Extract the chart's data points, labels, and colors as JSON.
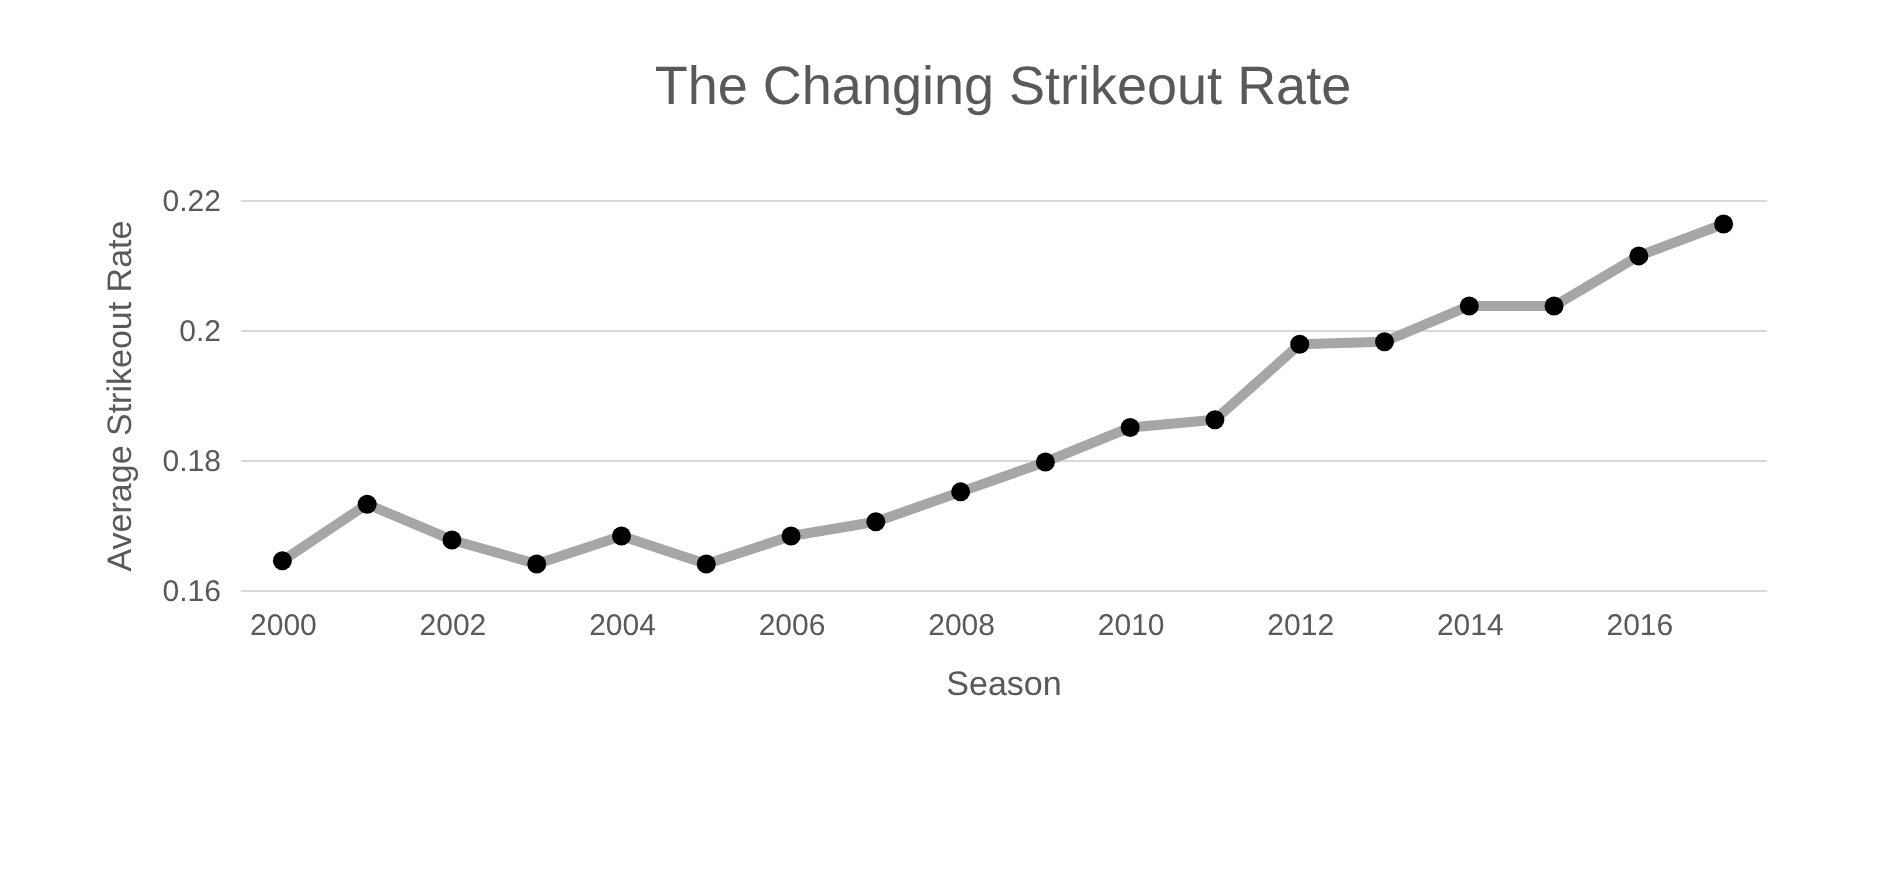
{
  "chart_data": {
    "type": "line",
    "title": "The Changing Strikeout Rate",
    "xlabel": "Season",
    "ylabel": "Average Strikeout Rate",
    "x": [
      2000,
      2001,
      2002,
      2003,
      2004,
      2005,
      2006,
      2007,
      2008,
      2009,
      2010,
      2011,
      2012,
      2013,
      2014,
      2015,
      2016,
      2017
    ],
    "series": [
      {
        "color": "#a6a6a6",
        "values": [
          0.1645,
          0.1732,
          0.1677,
          0.164,
          0.1683,
          0.164,
          0.1683,
          0.1705,
          0.1751,
          0.1797,
          0.185,
          0.1862,
          0.1978,
          0.1982,
          0.2037,
          0.2037,
          0.2114,
          0.2163
        ]
      }
    ],
    "xlim": [
      1999.5,
      2017.5
    ],
    "xticks": [
      2000,
      2002,
      2004,
      2006,
      2008,
      2010,
      2012,
      2014,
      2016
    ],
    "ylim": [
      0.16,
      0.22
    ],
    "yticks": [
      0.16,
      0.18,
      0.2,
      0.22
    ],
    "grid": "y",
    "marker": "circle",
    "line_style": "solid"
  }
}
